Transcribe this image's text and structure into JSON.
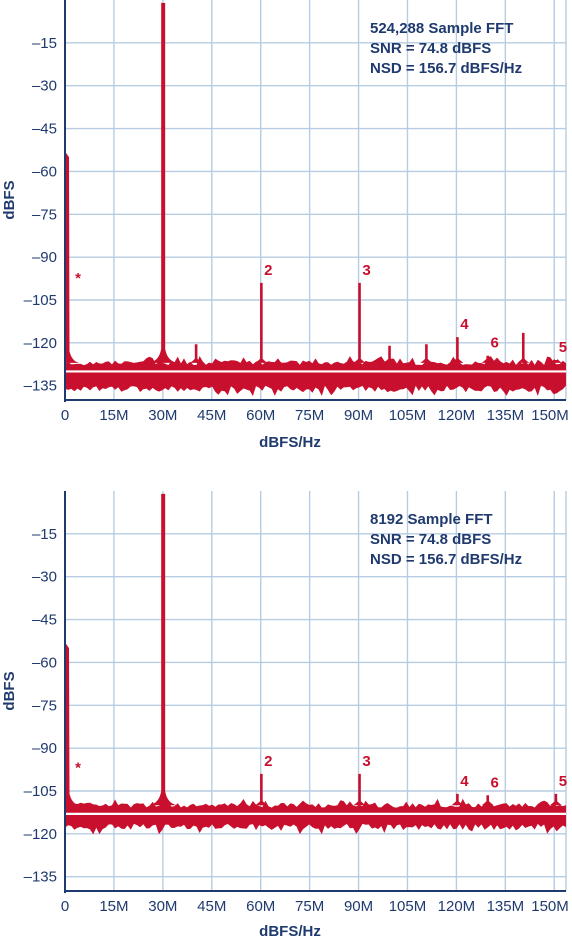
{
  "chart_data": [
    {
      "type": "line",
      "annotations": [
        "524,288 Sample FFT",
        "SNR = 74.8 dBFS",
        "NSD = 156.7 dBFS/Hz"
      ],
      "xlabel": "dBFS/Hz",
      "ylabel": "dBFS",
      "xlim": [
        0,
        153.6
      ],
      "ylim": [
        -140,
        0
      ],
      "x_ticks": [
        0,
        15,
        30,
        45,
        60,
        75,
        90,
        105,
        120,
        135,
        150
      ],
      "x_tick_labels": [
        "0",
        "15M",
        "30M",
        "45M",
        "60M",
        "75M",
        "90M",
        "105M",
        "120M",
        "135M",
        "150M"
      ],
      "y_ticks": [
        -15,
        -30,
        -45,
        -60,
        -75,
        -90,
        -105,
        -120,
        -135
      ],
      "y_tick_labels": [
        "–15",
        "–30",
        "–45",
        "–60",
        "–75",
        "–90",
        "–105",
        "–120",
        "–135"
      ],
      "grid": true,
      "x_unit": "MHz",
      "noise_floor": {
        "upper": -127,
        "lower": -135,
        "mean": -130
      },
      "spurs": [
        {
          "x": 0.3,
          "y": -53,
          "label": "*"
        },
        {
          "x": 30.1,
          "y": -1,
          "label": ""
        },
        {
          "x": 40.2,
          "y": -120.5,
          "label": ""
        },
        {
          "x": 60.2,
          "y": -99,
          "label": "2"
        },
        {
          "x": 90.3,
          "y": -99,
          "label": "3"
        },
        {
          "x": 99.5,
          "y": -121,
          "label": ""
        },
        {
          "x": 110.8,
          "y": -120.5,
          "label": ""
        },
        {
          "x": 120.3,
          "y": -118,
          "label": "4"
        },
        {
          "x": 129.6,
          "y": -124.5,
          "label": "6"
        },
        {
          "x": 140.5,
          "y": -116.5,
          "label": ""
        },
        {
          "x": 150.5,
          "y": -126,
          "label": "5"
        }
      ],
      "colors": {
        "trace": "#c8102e",
        "mean_line": "#ffffff",
        "grid": "#b7cce2",
        "text": "#1f3a6e"
      }
    },
    {
      "type": "line",
      "annotations": [
        "8192 Sample FFT",
        "SNR = 74.8 dBFS",
        "NSD = 156.7 dBFS/Hz"
      ],
      "xlabel": "dBFS/Hz",
      "ylabel": "dBFS",
      "xlim": [
        0,
        153.6
      ],
      "ylim": [
        -140,
        0
      ],
      "x_ticks": [
        0,
        15,
        30,
        45,
        60,
        75,
        90,
        105,
        120,
        135,
        150
      ],
      "x_tick_labels": [
        "0",
        "15M",
        "30M",
        "45M",
        "60M",
        "75M",
        "90M",
        "105M",
        "120M",
        "135M",
        "150M"
      ],
      "y_ticks": [
        -15,
        -30,
        -45,
        -60,
        -75,
        -90,
        -105,
        -120,
        -135
      ],
      "y_tick_labels": [
        "–15",
        "–30",
        "–45",
        "–60",
        "–75",
        "–90",
        "–105",
        "–120",
        "–135"
      ],
      "grid": true,
      "x_unit": "MHz",
      "noise_floor": {
        "upper": -110,
        "lower": -116.5,
        "mean": -113
      },
      "spurs": [
        {
          "x": 0.3,
          "y": -53,
          "label": "*"
        },
        {
          "x": 30.1,
          "y": -1,
          "label": ""
        },
        {
          "x": 60.2,
          "y": -99,
          "label": "2"
        },
        {
          "x": 90.3,
          "y": -99,
          "label": "3"
        },
        {
          "x": 120.3,
          "y": -106,
          "label": "4"
        },
        {
          "x": 129.6,
          "y": -106.5,
          "label": "6"
        },
        {
          "x": 150.5,
          "y": -106,
          "label": "5"
        }
      ],
      "colors": {
        "trace": "#c8102e",
        "mean_line": "#ffffff",
        "grid": "#b7cce2",
        "text": "#1f3a6e"
      }
    }
  ]
}
